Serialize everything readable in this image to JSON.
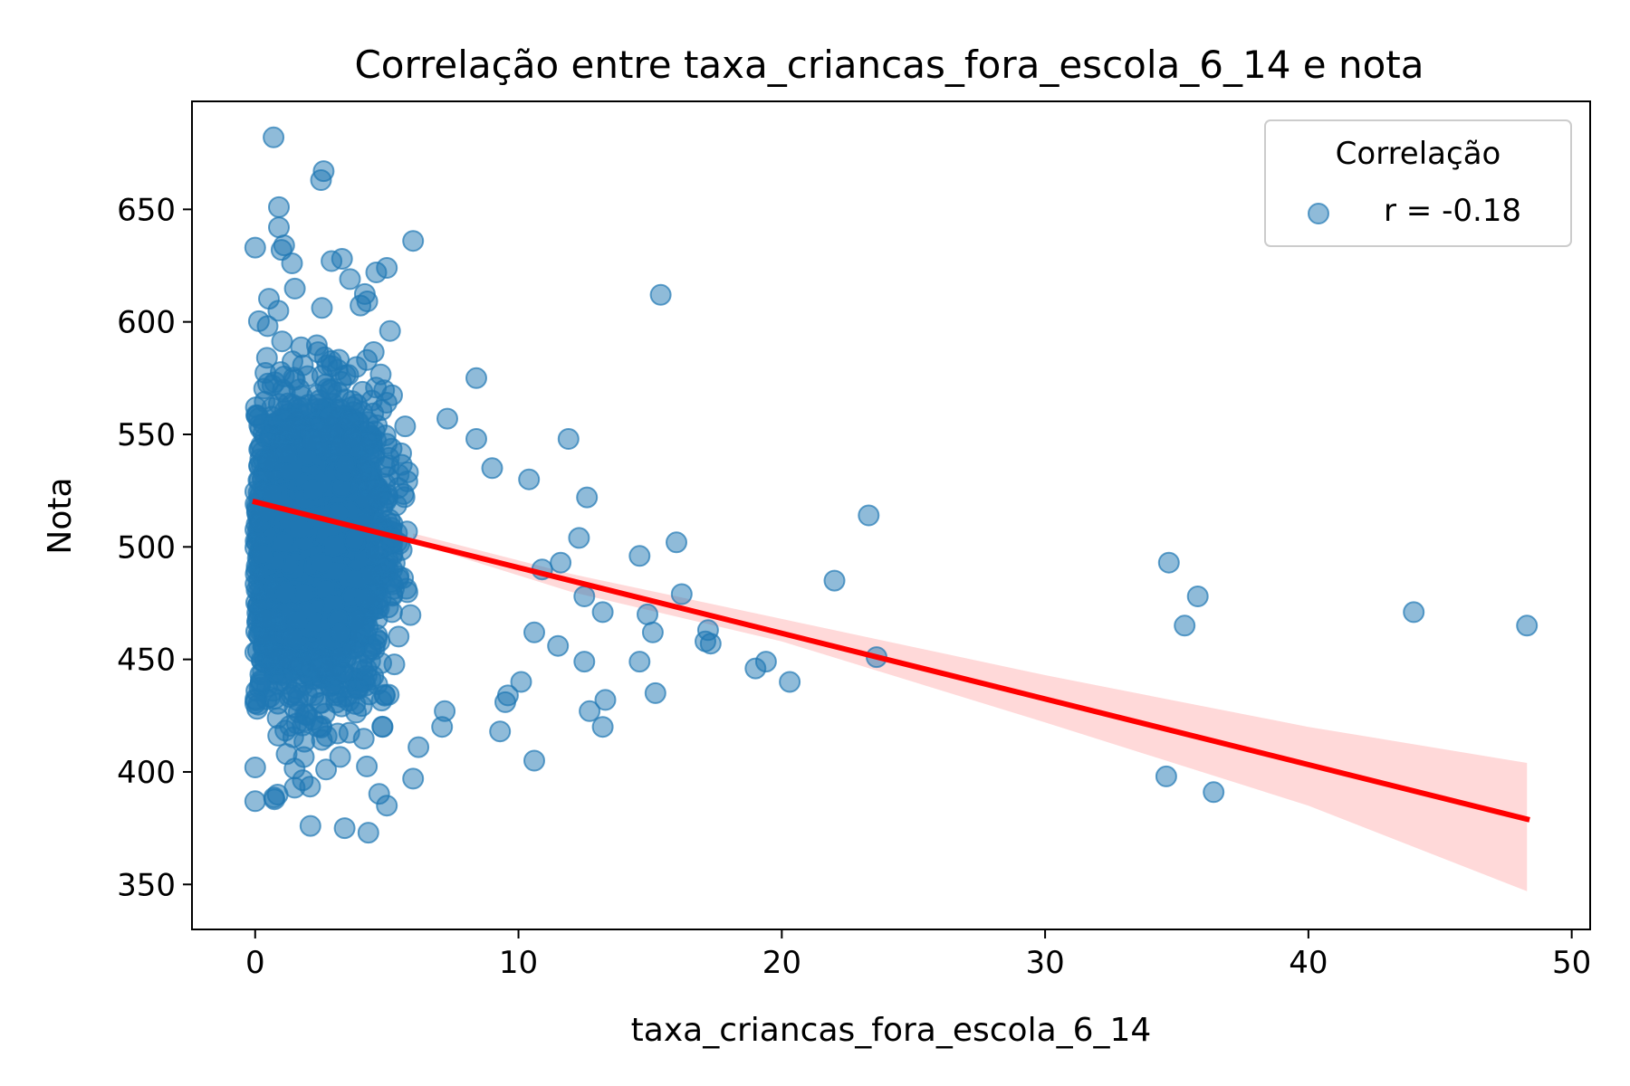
{
  "chart_data": {
    "type": "scatter",
    "title": "Correlação entre taxa_criancas_fora_escola_6_14 e nota",
    "xlabel": "taxa_criancas_fora_escola_6_14",
    "ylabel": "Nota",
    "xlim": [
      -2.4,
      50.7
    ],
    "ylim": [
      330,
      698
    ],
    "xticks": [
      0,
      10,
      20,
      30,
      40,
      50
    ],
    "yticks": [
      350,
      400,
      450,
      500,
      550,
      600,
      650
    ],
    "grid": false,
    "legend": {
      "title": "Correlação",
      "position": "top-right",
      "entries": [
        "r = -0.18"
      ]
    },
    "series": [
      {
        "name": "r = -0.18",
        "color": "#1f77b4",
        "alpha": 0.5,
        "cluster": {
          "x_range": [
            0,
            6
          ],
          "y_center": 500,
          "y_spread": 55,
          "count": 2600
        },
        "outliers": [
          [
            0.7,
            682
          ],
          [
            2.6,
            667
          ],
          [
            2.5,
            663
          ],
          [
            0.9,
            651
          ],
          [
            0.9,
            642
          ],
          [
            0.0,
            633
          ],
          [
            1.1,
            634
          ],
          [
            1.0,
            632
          ],
          [
            1.4,
            626
          ],
          [
            3.3,
            628
          ],
          [
            2.9,
            627
          ],
          [
            6.0,
            636
          ],
          [
            5.0,
            624
          ],
          [
            4.6,
            622
          ],
          [
            3.6,
            619
          ],
          [
            15.4,
            612
          ],
          [
            8.4,
            575
          ],
          [
            11.9,
            548
          ],
          [
            8.4,
            548
          ],
          [
            7.3,
            557
          ],
          [
            10.4,
            530
          ],
          [
            12.6,
            522
          ],
          [
            9.0,
            535
          ],
          [
            23.3,
            514
          ],
          [
            12.3,
            504
          ],
          [
            16.0,
            502
          ],
          [
            14.6,
            496
          ],
          [
            11.6,
            493
          ],
          [
            10.9,
            490
          ],
          [
            22.0,
            485
          ],
          [
            16.2,
            479
          ],
          [
            12.5,
            478
          ],
          [
            13.2,
            471
          ],
          [
            14.9,
            470
          ],
          [
            17.2,
            463
          ],
          [
            17.1,
            458
          ],
          [
            17.3,
            457
          ],
          [
            15.1,
            462
          ],
          [
            10.6,
            462
          ],
          [
            11.5,
            456
          ],
          [
            23.6,
            451
          ],
          [
            12.5,
            449
          ],
          [
            14.6,
            449
          ],
          [
            19.4,
            449
          ],
          [
            19.0,
            446
          ],
          [
            20.3,
            440
          ],
          [
            10.1,
            440
          ],
          [
            15.2,
            435
          ],
          [
            9.6,
            434
          ],
          [
            9.5,
            431
          ],
          [
            13.3,
            432
          ],
          [
            12.7,
            427
          ],
          [
            13.2,
            420
          ],
          [
            9.3,
            418
          ],
          [
            10.6,
            405
          ],
          [
            34.7,
            493
          ],
          [
            35.8,
            478
          ],
          [
            35.3,
            465
          ],
          [
            44.0,
            471
          ],
          [
            48.3,
            465
          ],
          [
            34.6,
            398
          ],
          [
            36.4,
            391
          ],
          [
            0.0,
            402
          ],
          [
            0.0,
            387
          ],
          [
            1.5,
            393
          ],
          [
            2.1,
            376
          ],
          [
            3.4,
            375
          ],
          [
            4.3,
            373
          ],
          [
            5.0,
            385
          ],
          [
            6.0,
            397
          ],
          [
            7.1,
            420
          ],
          [
            7.2,
            427
          ],
          [
            6.2,
            411
          ]
        ]
      }
    ],
    "regression": {
      "color": "#ff0000",
      "x_range": [
        0,
        48.3
      ],
      "y_at_start": 520,
      "y_at_end": 379,
      "ci_lower": [
        [
          6,
          502
        ],
        [
          12,
          480
        ],
        [
          20,
          458
        ],
        [
          30,
          422
        ],
        [
          40,
          385
        ],
        [
          48.3,
          347
        ]
      ],
      "ci_upper": [
        [
          6,
          506
        ],
        [
          12,
          488
        ],
        [
          20,
          468
        ],
        [
          30,
          443
        ],
        [
          40,
          420
        ],
        [
          48.3,
          404
        ]
      ],
      "ci_color": "#ff8080",
      "ci_alpha": 0.3
    }
  }
}
